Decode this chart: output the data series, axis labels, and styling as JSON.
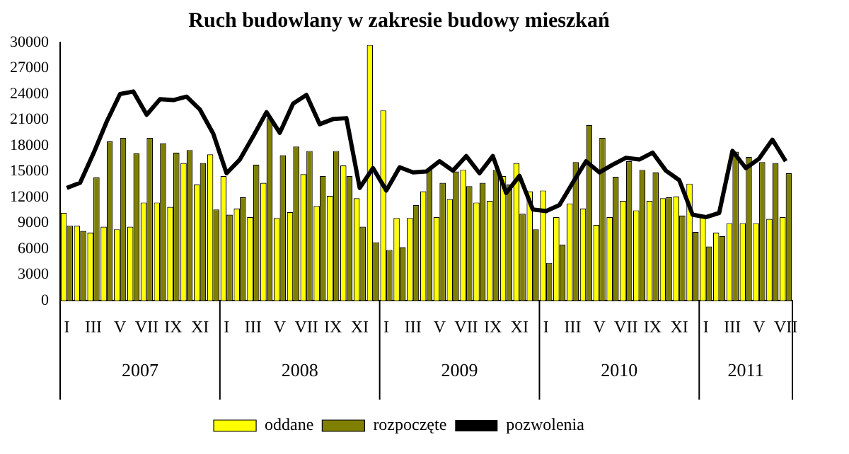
{
  "chart_data": {
    "type": "bar",
    "title": "Ruch budowlany w zakresie budowy mieszkań",
    "categories": [
      "I",
      null,
      "III",
      null,
      "V",
      null,
      "VII",
      null,
      "IX",
      null,
      "XI",
      null,
      "I",
      null,
      "III",
      null,
      "V",
      null,
      "VII",
      null,
      "IX",
      null,
      "XI",
      null,
      "I",
      null,
      "III",
      null,
      "V",
      null,
      "VII",
      null,
      "IX",
      null,
      "XI",
      null,
      "I",
      null,
      "III",
      null,
      "V",
      null,
      "VII",
      null,
      "IX",
      null,
      "XI",
      null,
      "I",
      null,
      "III",
      null,
      "V",
      null,
      "VII"
    ],
    "series": [
      {
        "name": "oddane",
        "color": "#ffff00",
        "values": [
          10200,
          8700,
          7900,
          8600,
          8300,
          8600,
          11400,
          11400,
          10900,
          16000,
          13500,
          17000,
          14500,
          10700,
          9700,
          13700,
          9600,
          10300,
          14700,
          11000,
          12200,
          15700,
          11900,
          29700,
          22100,
          9600,
          9600,
          12700,
          9700,
          11800,
          15200,
          11400,
          11600,
          14500,
          16000,
          12700,
          12800,
          9700,
          11300,
          10700,
          8800,
          9700,
          11600,
          10500,
          11600,
          11900,
          12100,
          13600,
          10000,
          7900,
          9000,
          9000,
          9000,
          9500,
          9700
        ]
      },
      {
        "name": "rozpoczęte",
        "color": "#808000",
        "values": [
          8700,
          8100,
          14300,
          18500,
          18900,
          17100,
          18900,
          18300,
          17200,
          17500,
          16000,
          10600,
          10000,
          12000,
          15800,
          21200,
          16900,
          17900,
          17400,
          14500,
          17400,
          14500,
          8600,
          6800,
          5900,
          6200,
          11100,
          15200,
          13700,
          15000,
          13300,
          13700,
          15200,
          13500,
          10100,
          8300,
          4400,
          6500,
          16100,
          20400,
          18900,
          14400,
          16200,
          15200,
          14900,
          12000,
          9900,
          8000,
          6300,
          7500,
          17300,
          16700,
          16100,
          16000,
          14800
        ]
      },
      {
        "name": "pozwolenia",
        "type": "line",
        "color": "#000000",
        "values": [
          13100,
          13700,
          17100,
          20800,
          24000,
          24300,
          21600,
          23400,
          23300,
          23700,
          22200,
          19400,
          14800,
          16400,
          19100,
          21900,
          19500,
          22900,
          23900,
          20500,
          21100,
          21200,
          13100,
          15400,
          12800,
          15500,
          14900,
          15000,
          16200,
          15100,
          16800,
          14800,
          16800,
          12500,
          14500,
          10600,
          10400,
          11100,
          13700,
          16200,
          14900,
          15800,
          16600,
          16400,
          17200,
          15100,
          14000,
          10000,
          9700,
          10200,
          17400,
          15400,
          16500,
          18700,
          16200
        ]
      }
    ],
    "annotations": [
      "2007",
      "2008",
      "2009",
      "2010",
      "2011"
    ],
    "ylim": [
      0,
      30000
    ],
    "yticks": [
      0,
      3000,
      6000,
      9000,
      12000,
      15000,
      18000,
      21000,
      24000,
      27000,
      30000
    ],
    "grid": false,
    "legend": "bottom",
    "marker": "none",
    "line_style": "solid"
  }
}
